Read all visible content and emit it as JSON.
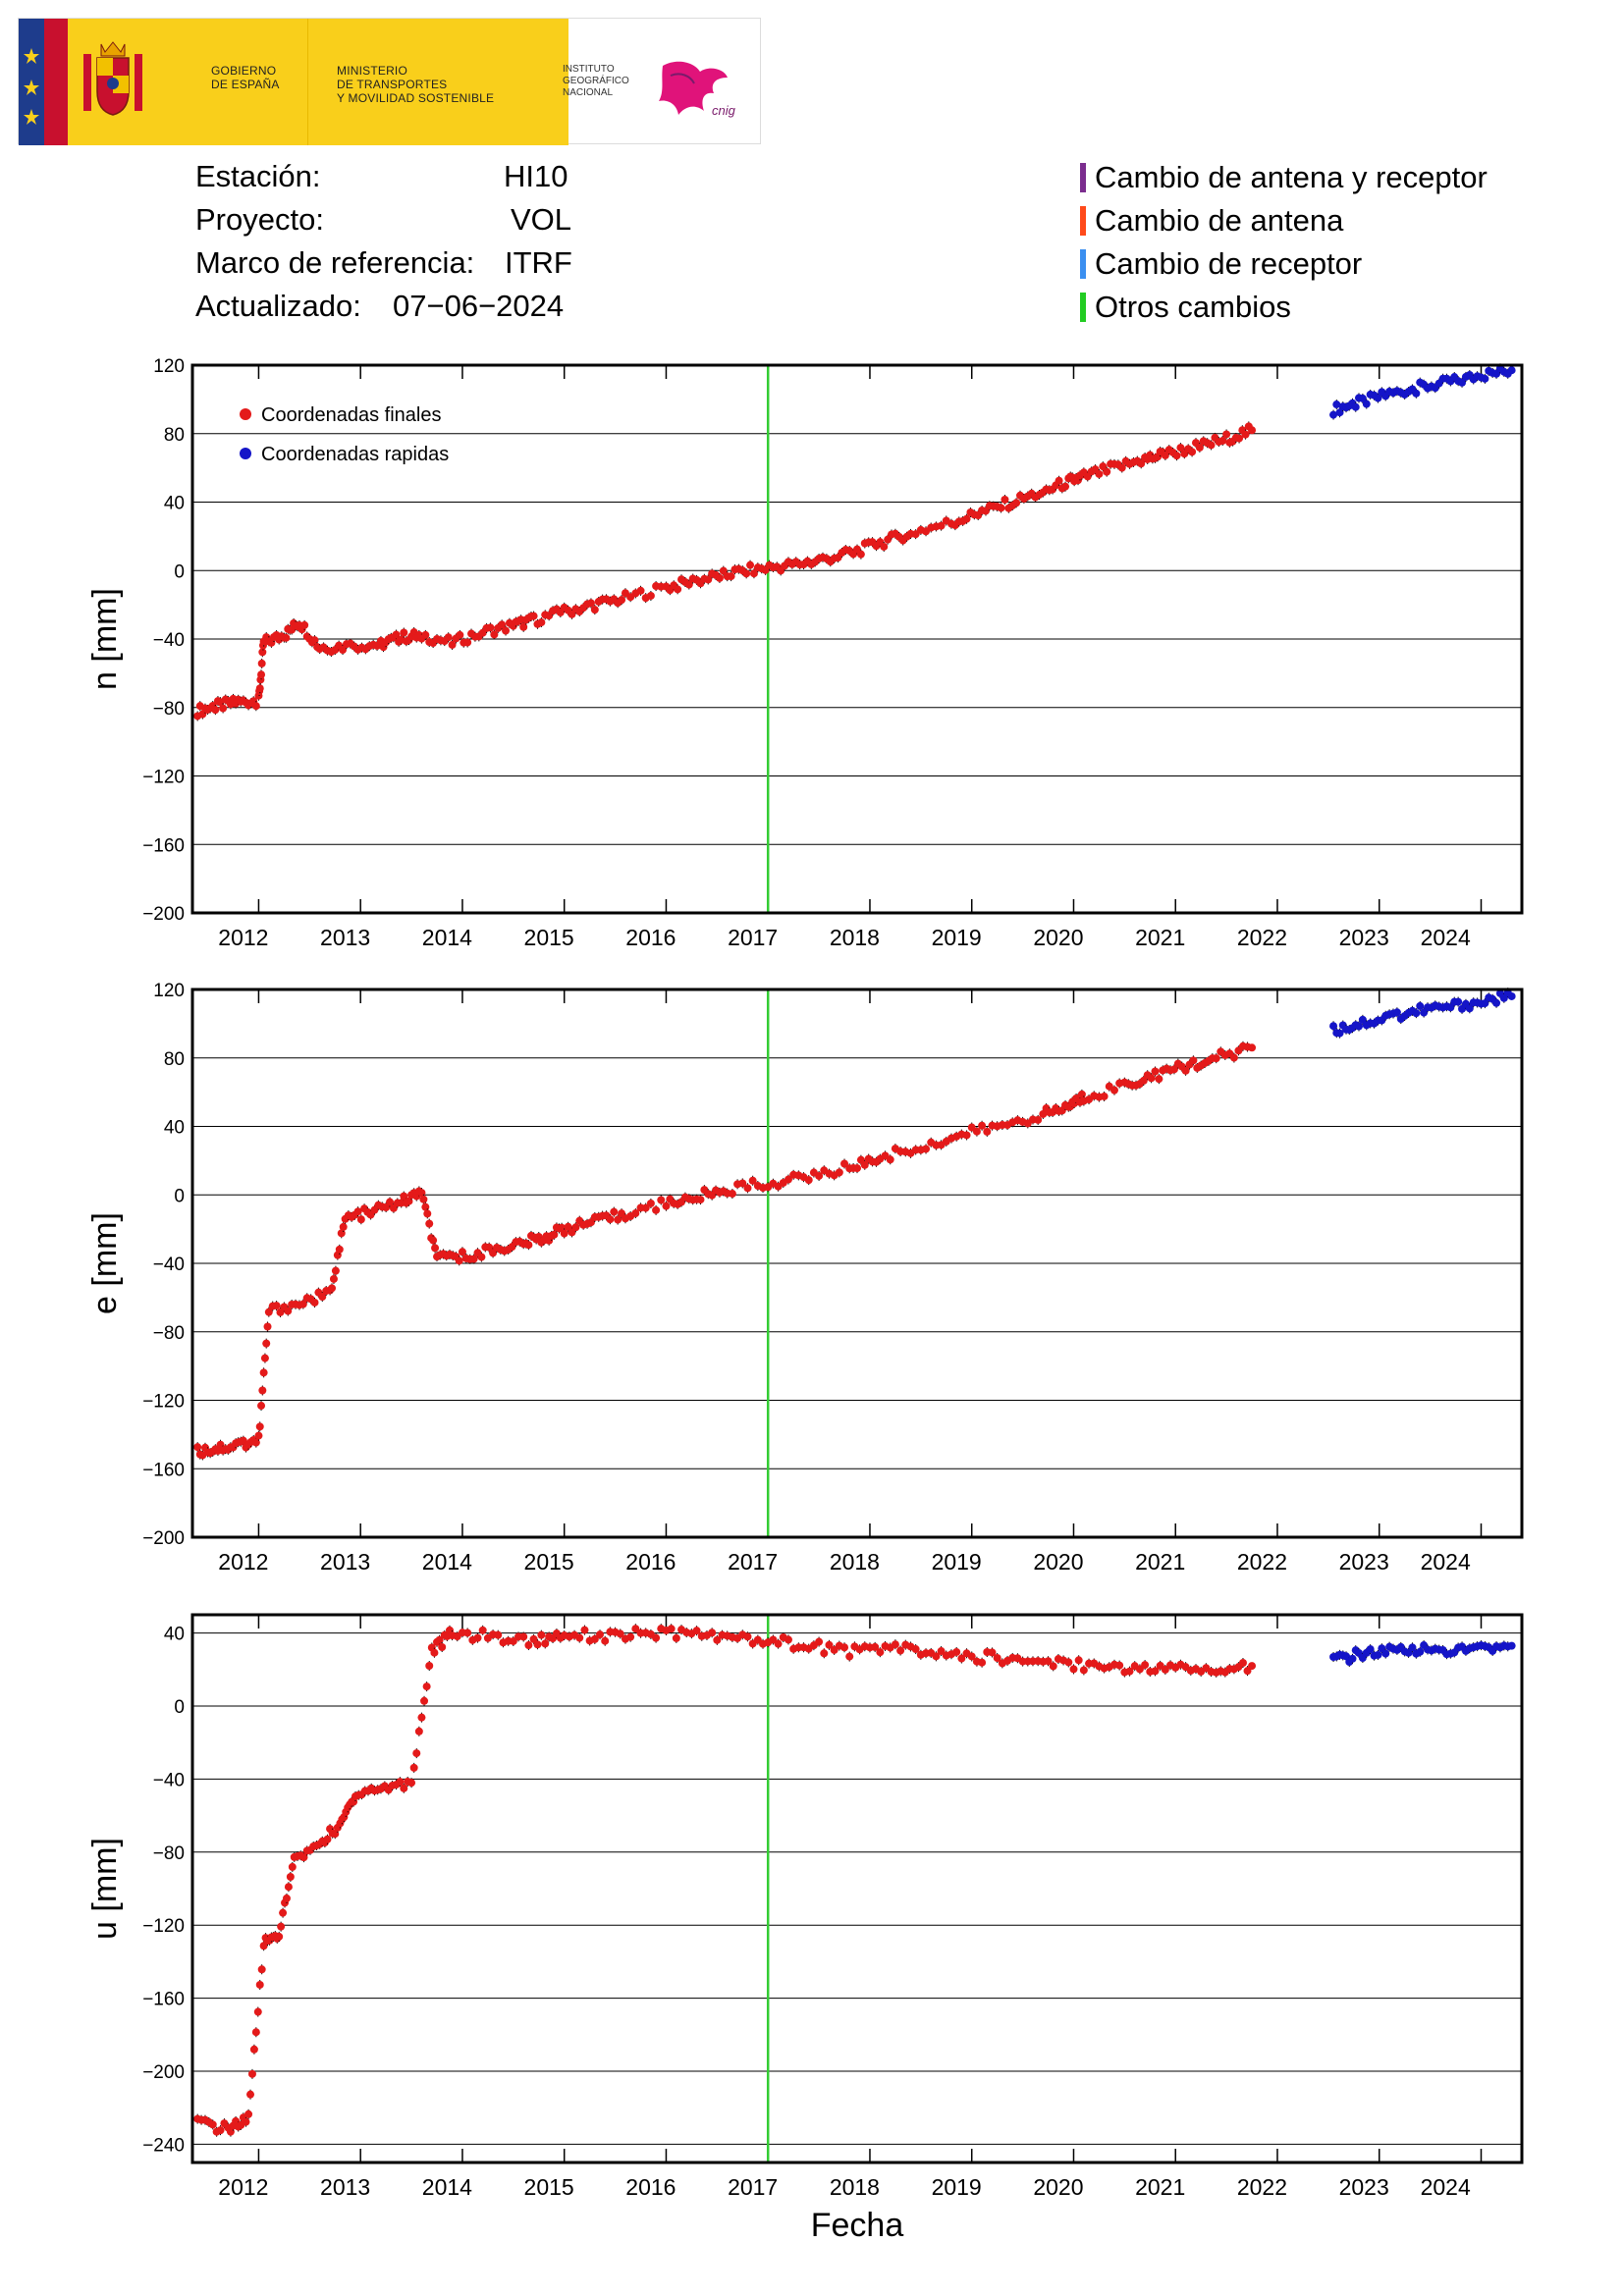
{
  "header": {
    "gov_line1": "GOBIERNO",
    "gov_line2": "DE ESPAÑA",
    "ministry_line1": "MINISTERIO",
    "ministry_line2": "DE TRANSPORTES",
    "ministry_line3": "Y MOVILIDAD SOSTENIBLE",
    "ign_line1": "INSTITUTO",
    "ign_line2": "GEOGRÁFICO",
    "ign_line3": "NACIONAL",
    "cnig_text": "cnig"
  },
  "station_info": {
    "station_label": "Estación:",
    "station_value": "HI10",
    "project_label": "Proyecto:",
    "project_value": "VOL",
    "frame_label": "Marco de referencia:",
    "frame_value": "ITRF",
    "updated_label": "Actualizado:",
    "updated_value": "07−06−2024"
  },
  "change_legend": [
    {
      "label": "Cambio de antena y receptor",
      "color": "#7b2d8e"
    },
    {
      "label": "Cambio de antena",
      "color": "#ff4a1a"
    },
    {
      "label": "Cambio de receptor",
      "color": "#3b8ff0"
    },
    {
      "label": "Otros cambios",
      "color": "#22cc22"
    }
  ],
  "colors": {
    "final": "#e41a1a",
    "rapid": "#1515c8",
    "event_line": "#33cc33",
    "grid": "#000000"
  },
  "chart_data": [
    {
      "type": "scatter",
      "ylabel": "n [mm]",
      "ylim": [
        -200,
        120
      ],
      "yticks": [
        120,
        80,
        40,
        0,
        -40,
        -80,
        -120,
        -160,
        -200
      ],
      "x_tick_labels": [
        "2012",
        "2013",
        "2014",
        "2015",
        "2016",
        "2017",
        "2018",
        "2019",
        "2020",
        "2021",
        "2022",
        "2023",
        "2024"
      ],
      "legend": [
        "Coordenadas finales",
        "Coordenadas rapidas"
      ],
      "legend_position": "top-left",
      "event_lines": [
        {
          "x": 2017.0,
          "kind": "Otros cambios"
        }
      ],
      "final_series": [
        [
          2011.4,
          -82
        ],
        [
          2011.6,
          -79
        ],
        [
          2011.8,
          -77
        ],
        [
          2012.0,
          -76
        ],
        [
          2012.05,
          -42
        ],
        [
          2012.25,
          -38
        ],
        [
          2012.4,
          -30
        ],
        [
          2012.6,
          -45
        ],
        [
          2012.9,
          -44
        ],
        [
          2013.2,
          -43
        ],
        [
          2013.4,
          -39
        ],
        [
          2013.6,
          -38
        ],
        [
          2013.9,
          -42
        ],
        [
          2014.2,
          -36
        ],
        [
          2014.5,
          -32
        ],
        [
          2014.7,
          -29
        ],
        [
          2015.0,
          -24
        ],
        [
          2015.3,
          -20
        ],
        [
          2015.6,
          -16
        ],
        [
          2016.0,
          -10
        ],
        [
          2016.3,
          -6
        ],
        [
          2016.6,
          -2
        ],
        [
          2016.9,
          1
        ],
        [
          2017.2,
          3
        ],
        [
          2017.5,
          6
        ],
        [
          2017.8,
          10
        ],
        [
          2018.1,
          16
        ],
        [
          2018.4,
          22
        ],
        [
          2018.8,
          28
        ],
        [
          2019.1,
          34
        ],
        [
          2019.4,
          40
        ],
        [
          2019.7,
          46
        ],
        [
          2019.95,
          52
        ],
        [
          2020.1,
          55
        ],
        [
          2020.4,
          60
        ],
        [
          2020.7,
          65
        ],
        [
          2020.9,
          68
        ],
        [
          2021.2,
          72
        ],
        [
          2021.5,
          77
        ],
        [
          2021.75,
          82
        ]
      ],
      "rapid_series": [
        [
          2022.55,
          94
        ],
        [
          2022.8,
          98
        ],
        [
          2023.1,
          103
        ],
        [
          2023.4,
          107
        ],
        [
          2023.7,
          110
        ],
        [
          2024.0,
          114
        ],
        [
          2024.3,
          117
        ]
      ]
    },
    {
      "type": "scatter",
      "ylabel": "e [mm]",
      "ylim": [
        -200,
        120
      ],
      "yticks": [
        120,
        80,
        40,
        0,
        -40,
        -80,
        -120,
        -160,
        -200
      ],
      "x_tick_labels": [
        "2012",
        "2013",
        "2014",
        "2015",
        "2016",
        "2017",
        "2018",
        "2019",
        "2020",
        "2021",
        "2022",
        "2023",
        "2024"
      ],
      "event_lines": [
        {
          "x": 2017.0,
          "kind": "Otros cambios"
        }
      ],
      "final_series": [
        [
          2011.4,
          -150
        ],
        [
          2011.6,
          -148
        ],
        [
          2011.8,
          -146
        ],
        [
          2012.0,
          -143
        ],
        [
          2012.1,
          -68
        ],
        [
          2012.4,
          -63
        ],
        [
          2012.7,
          -58
        ],
        [
          2012.85,
          -14
        ],
        [
          2013.1,
          -10
        ],
        [
          2013.4,
          -4
        ],
        [
          2013.6,
          1
        ],
        [
          2013.75,
          -38
        ],
        [
          2014.0,
          -36
        ],
        [
          2014.3,
          -32
        ],
        [
          2014.6,
          -28
        ],
        [
          2014.8,
          -25
        ],
        [
          2015.0,
          -20
        ],
        [
          2015.3,
          -16
        ],
        [
          2015.6,
          -11
        ],
        [
          2016.0,
          -5
        ],
        [
          2016.3,
          -1
        ],
        [
          2016.6,
          3
        ],
        [
          2017.0,
          7
        ],
        [
          2017.4,
          10
        ],
        [
          2017.8,
          16
        ],
        [
          2018.1,
          22
        ],
        [
          2018.5,
          28
        ],
        [
          2018.9,
          35
        ],
        [
          2019.3,
          41
        ],
        [
          2019.7,
          47
        ],
        [
          2019.95,
          52
        ],
        [
          2020.1,
          57
        ],
        [
          2020.5,
          64
        ],
        [
          2020.8,
          70
        ],
        [
          2021.1,
          75
        ],
        [
          2021.4,
          80
        ],
        [
          2021.75,
          86
        ]
      ],
      "rapid_series": [
        [
          2022.55,
          96
        ],
        [
          2022.8,
          100
        ],
        [
          2023.1,
          104
        ],
        [
          2023.4,
          108
        ],
        [
          2023.7,
          110
        ],
        [
          2024.0,
          113
        ],
        [
          2024.3,
          116
        ]
      ]
    },
    {
      "type": "scatter",
      "ylabel": "u [mm]",
      "ylim": [
        -250,
        50
      ],
      "yticks": [
        40,
        0,
        -40,
        -80,
        -120,
        -160,
        -200,
        -240
      ],
      "x_tick_labels": [
        "2012",
        "2013",
        "2014",
        "2015",
        "2016",
        "2017",
        "2018",
        "2019",
        "2020",
        "2021",
        "2022",
        "2023",
        "2024"
      ],
      "xlabel": "Fecha",
      "event_lines": [
        {
          "x": 2017.0,
          "kind": "Otros cambios"
        }
      ],
      "final_series": [
        [
          2011.4,
          -228
        ],
        [
          2011.7,
          -232
        ],
        [
          2011.9,
          -226
        ],
        [
          2012.05,
          -130
        ],
        [
          2012.2,
          -125
        ],
        [
          2012.35,
          -85
        ],
        [
          2012.6,
          -75
        ],
        [
          2012.8,
          -65
        ],
        [
          2012.95,
          -48
        ],
        [
          2013.2,
          -45
        ],
        [
          2013.5,
          -42
        ],
        [
          2013.7,
          30
        ],
        [
          2013.9,
          40
        ],
        [
          2014.3,
          38
        ],
        [
          2014.7,
          35
        ],
        [
          2015.0,
          40
        ],
        [
          2015.4,
          38
        ],
        [
          2015.8,
          40
        ],
        [
          2016.2,
          39
        ],
        [
          2016.6,
          38
        ],
        [
          2017.0,
          36
        ],
        [
          2017.4,
          33
        ],
        [
          2017.8,
          30
        ],
        [
          2018.2,
          32
        ],
        [
          2018.6,
          29
        ],
        [
          2019.0,
          27
        ],
        [
          2019.4,
          26
        ],
        [
          2019.8,
          24
        ],
        [
          2020.2,
          22
        ],
        [
          2020.6,
          20
        ],
        [
          2021.0,
          21
        ],
        [
          2021.4,
          20
        ],
        [
          2021.75,
          22
        ]
      ],
      "rapid_series": [
        [
          2022.55,
          25
        ],
        [
          2022.8,
          28
        ],
        [
          2023.1,
          30
        ],
        [
          2023.4,
          31
        ],
        [
          2023.7,
          30
        ],
        [
          2024.0,
          31
        ],
        [
          2024.3,
          33
        ]
      ]
    }
  ]
}
